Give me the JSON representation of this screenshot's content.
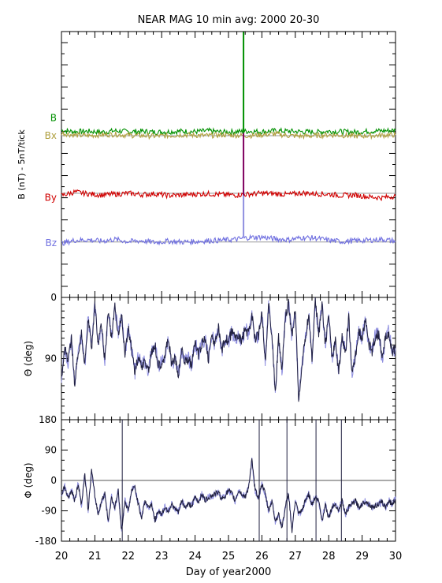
{
  "title": "NEAR MAG 10 min avg: 2000 20-30",
  "xlabel": "Day of year2000",
  "x_ticks": [
    "20",
    "21",
    "22",
    "23",
    "24",
    "25",
    "26",
    "27",
    "28",
    "29",
    "30"
  ],
  "colors": {
    "B": "#009000",
    "Bx": "#b0a040",
    "By": "#d00000",
    "Bz": "#7070e0",
    "trace_dark": "#202040",
    "trace_light": "#9090e0",
    "axis": "#000000",
    "ref": "#999999"
  },
  "chart_data": [
    {
      "type": "line",
      "panel": "field",
      "ylabel": "B  (nT) - 5nT/tick",
      "xlim": [
        20,
        30
      ],
      "series": [
        {
          "name": "B",
          "color": "#009000",
          "values": [
            [
              20.0,
              25.2
            ],
            [
              20.4,
              24.9
            ],
            [
              20.8,
              25.0
            ],
            [
              21.2,
              24.8
            ],
            [
              21.6,
              25.1
            ],
            [
              22.0,
              24.9
            ],
            [
              22.4,
              25.0
            ],
            [
              22.8,
              24.8
            ],
            [
              23.2,
              24.9
            ],
            [
              23.6,
              25.0
            ],
            [
              24.0,
              24.9
            ],
            [
              24.4,
              25.1
            ],
            [
              24.8,
              24.8
            ],
            [
              25.2,
              24.9
            ],
            [
              25.6,
              25.0
            ],
            [
              26.0,
              24.9
            ],
            [
              26.4,
              25.1
            ],
            [
              26.8,
              25.0
            ],
            [
              27.2,
              24.9
            ],
            [
              27.6,
              24.8
            ],
            [
              28.0,
              25.0
            ],
            [
              28.4,
              24.9
            ],
            [
              28.8,
              24.8
            ],
            [
              29.2,
              25.0
            ],
            [
              29.6,
              25.1
            ],
            [
              30.0,
              25.2
            ]
          ]
        },
        {
          "name": "Bx",
          "color": "#b0a040",
          "values": [
            [
              20.0,
              24.6
            ],
            [
              20.4,
              24.1
            ],
            [
              20.8,
              24.0
            ],
            [
              21.2,
              24.2
            ],
            [
              21.6,
              24.3
            ],
            [
              22.0,
              24.1
            ],
            [
              22.4,
              24.0
            ],
            [
              22.8,
              23.9
            ],
            [
              23.2,
              24.0
            ],
            [
              23.6,
              24.2
            ],
            [
              24.0,
              24.1
            ],
            [
              24.4,
              24.0
            ],
            [
              24.8,
              24.2
            ],
            [
              25.2,
              24.1
            ],
            [
              25.6,
              24.0
            ],
            [
              26.0,
              24.2
            ],
            [
              26.4,
              24.4
            ],
            [
              26.8,
              24.0
            ],
            [
              27.2,
              23.9
            ],
            [
              27.6,
              24.0
            ],
            [
              28.0,
              24.2
            ],
            [
              28.4,
              24.1
            ],
            [
              28.8,
              23.9
            ],
            [
              29.2,
              24.0
            ],
            [
              29.6,
              24.1
            ],
            [
              30.0,
              24.2
            ]
          ]
        },
        {
          "name": "By",
          "color": "#d00000",
          "values": [
            [
              20.0,
              10.5
            ],
            [
              20.4,
              11.3
            ],
            [
              20.8,
              10.9
            ],
            [
              21.2,
              10.6
            ],
            [
              21.6,
              10.8
            ],
            [
              22.0,
              11.0
            ],
            [
              22.4,
              10.7
            ],
            [
              22.8,
              10.9
            ],
            [
              23.2,
              10.5
            ],
            [
              23.6,
              10.6
            ],
            [
              24.0,
              10.8
            ],
            [
              24.4,
              10.9
            ],
            [
              24.8,
              10.7
            ],
            [
              25.2,
              10.6
            ],
            [
              25.6,
              10.8
            ],
            [
              26.0,
              11.0
            ],
            [
              26.4,
              10.9
            ],
            [
              26.8,
              10.7
            ],
            [
              27.2,
              11.1
            ],
            [
              27.6,
              10.9
            ],
            [
              28.0,
              10.8
            ],
            [
              28.4,
              10.5
            ],
            [
              28.8,
              10.6
            ],
            [
              29.2,
              10.2
            ],
            [
              29.6,
              10.0
            ],
            [
              30.0,
              10.4
            ]
          ]
        },
        {
          "name": "Bz",
          "color": "#7070e0",
          "values": [
            [
              20.0,
              -0.3
            ],
            [
              20.4,
              0.4
            ],
            [
              20.8,
              0.5
            ],
            [
              21.2,
              0.2
            ],
            [
              21.6,
              0.6
            ],
            [
              22.0,
              0.1
            ],
            [
              22.4,
              0.3
            ],
            [
              22.8,
              -0.1
            ],
            [
              23.2,
              0.2
            ],
            [
              23.6,
              0.0
            ],
            [
              24.0,
              0.1
            ],
            [
              24.4,
              0.3
            ],
            [
              24.8,
              0.4
            ],
            [
              25.2,
              0.6
            ],
            [
              25.6,
              1.0
            ],
            [
              26.0,
              1.1
            ],
            [
              26.4,
              0.7
            ],
            [
              26.8,
              0.5
            ],
            [
              27.2,
              1.0
            ],
            [
              27.6,
              0.9
            ],
            [
              28.0,
              0.4
            ],
            [
              28.4,
              0.1
            ],
            [
              28.8,
              0.3
            ],
            [
              29.2,
              0.4
            ],
            [
              29.6,
              0.6
            ],
            [
              30.0,
              0.2
            ]
          ]
        }
      ],
      "labels": [
        {
          "text": "B",
          "color": "#009000",
          "y": 28.0
        },
        {
          "text": "Bx",
          "color": "#b0a040",
          "y": 24.0
        },
        {
          "text": "By",
          "color": "#d00000",
          "y": 10.0
        },
        {
          "text": "Bz",
          "color": "#7070e0",
          "y": -0.2
        }
      ],
      "ref_lines": [
        24.0,
        11.0,
        0.0
      ],
      "spike": {
        "x": 25.45,
        "segments": [
          [
            47.4,
            24.6,
            "#009000"
          ],
          [
            24.6,
            10.5,
            "#800060"
          ],
          [
            10.5,
            1.2,
            "#9090e0"
          ]
        ]
      },
      "ylim": [
        -12.5,
        47.5
      ]
    },
    {
      "type": "line",
      "panel": "theta",
      "ylabel": "Θ (deg)",
      "ylim": [
        0,
        180
      ],
      "y_inverted": true,
      "y_ticks": [
        "0",
        "90"
      ],
      "y_tick_values": [
        0,
        90
      ],
      "x": [
        20.0,
        20.1,
        20.2,
        20.3,
        20.4,
        20.5,
        20.6,
        20.7,
        20.8,
        20.9,
        21.0,
        21.1,
        21.2,
        21.3,
        21.4,
        21.5,
        21.6,
        21.7,
        21.8,
        21.9,
        22.0,
        22.1,
        22.2,
        22.3,
        22.4,
        22.5,
        22.6,
        22.7,
        22.8,
        22.9,
        23.0,
        23.1,
        23.2,
        23.3,
        23.4,
        23.5,
        23.6,
        23.7,
        23.8,
        23.9,
        24.0,
        24.1,
        24.2,
        24.3,
        24.4,
        24.5,
        24.6,
        24.7,
        24.8,
        24.9,
        25.0,
        25.1,
        25.2,
        25.3,
        25.4,
        25.5,
        25.6,
        25.7,
        25.8,
        25.9,
        26.0,
        26.1,
        26.2,
        26.3,
        26.4,
        26.5,
        26.6,
        26.7,
        26.8,
        26.9,
        27.0,
        27.1,
        27.2,
        27.3,
        27.4,
        27.5,
        27.6,
        27.7,
        27.8,
        27.9,
        28.0,
        28.1,
        28.2,
        28.3,
        28.4,
        28.5,
        28.6,
        28.7,
        28.8,
        28.9,
        29.0,
        29.1,
        29.2,
        29.3,
        29.4,
        29.5,
        29.6,
        29.7,
        29.8,
        29.9,
        30.0
      ],
      "values": [
        120,
        75,
        95,
        62,
        130,
        80,
        55,
        98,
        30,
        75,
        10,
        70,
        40,
        95,
        20,
        60,
        15,
        55,
        25,
        85,
        45,
        75,
        110,
        88,
        100,
        95,
        108,
        80,
        70,
        100,
        95,
        85,
        60,
        100,
        90,
        115,
        75,
        95,
        90,
        100,
        65,
        85,
        70,
        60,
        90,
        55,
        70,
        45,
        80,
        60,
        65,
        50,
        60,
        55,
        65,
        45,
        55,
        25,
        65,
        55,
        20,
        95,
        10,
        55,
        140,
        60,
        110,
        30,
        10,
        60,
        15,
        150,
        100,
        60,
        25,
        90,
        5,
        55,
        10,
        70,
        25,
        90,
        65,
        110,
        60,
        80,
        30,
        115,
        85,
        50,
        60,
        30,
        70,
        80,
        55,
        55,
        90,
        60,
        50,
        80,
        75
      ]
    },
    {
      "type": "line",
      "panel": "phi",
      "ylabel": "Φ (deg)",
      "ylim": [
        -180,
        180
      ],
      "y_ticks": [
        "180",
        "90",
        "0",
        "-90",
        "-180"
      ],
      "y_tick_values": [
        180,
        90,
        0,
        -90,
        -180
      ],
      "x": [
        20.0,
        20.1,
        20.2,
        20.3,
        20.4,
        20.5,
        20.6,
        20.7,
        20.8,
        20.9,
        21.0,
        21.1,
        21.2,
        21.3,
        21.4,
        21.5,
        21.6,
        21.7,
        21.8,
        21.9,
        22.0,
        22.1,
        22.2,
        22.3,
        22.4,
        22.5,
        22.6,
        22.7,
        22.8,
        22.9,
        23.0,
        23.1,
        23.2,
        23.3,
        23.4,
        23.5,
        23.6,
        23.7,
        23.8,
        23.9,
        24.0,
        24.1,
        24.2,
        24.3,
        24.4,
        24.5,
        24.6,
        24.7,
        24.8,
        24.9,
        25.0,
        25.1,
        25.2,
        25.3,
        25.4,
        25.5,
        25.6,
        25.7,
        25.8,
        25.9,
        26.0,
        26.1,
        26.2,
        26.3,
        26.4,
        26.5,
        26.6,
        26.7,
        26.8,
        26.9,
        27.0,
        27.1,
        27.2,
        27.3,
        27.4,
        27.5,
        27.6,
        27.7,
        27.8,
        27.9,
        28.0,
        28.1,
        28.2,
        28.3,
        28.4,
        28.5,
        28.6,
        28.7,
        28.8,
        28.9,
        29.0,
        29.1,
        29.2,
        29.3,
        29.4,
        29.5,
        29.6,
        29.7,
        29.8,
        29.9,
        30.0
      ],
      "values": [
        -40,
        -20,
        -50,
        -30,
        -60,
        -10,
        -70,
        20,
        -90,
        30,
        -45,
        -100,
        -60,
        -40,
        -120,
        -50,
        -80,
        -30,
        -150,
        -60,
        -90,
        -30,
        -20,
        -70,
        -110,
        -60,
        -80,
        -70,
        -120,
        -90,
        -100,
        -80,
        -90,
        -70,
        -85,
        -95,
        -60,
        -80,
        -70,
        -75,
        -50,
        -65,
        -40,
        -60,
        -50,
        -45,
        -40,
        -35,
        -55,
        -45,
        -30,
        -40,
        -60,
        -30,
        -40,
        -50,
        -20,
        60,
        -30,
        -50,
        -10,
        -40,
        -90,
        -60,
        -120,
        -100,
        -140,
        -80,
        -40,
        -150,
        -60,
        -100,
        -90,
        -60,
        -40,
        -70,
        -50,
        -60,
        -120,
        -70,
        -110,
        -80,
        -70,
        -90,
        -60,
        -100,
        -80,
        -70,
        -60,
        -80,
        -70,
        -60,
        -70,
        -80,
        -75,
        -70,
        -65,
        -80,
        -60,
        -70,
        -55
      ]
    }
  ]
}
